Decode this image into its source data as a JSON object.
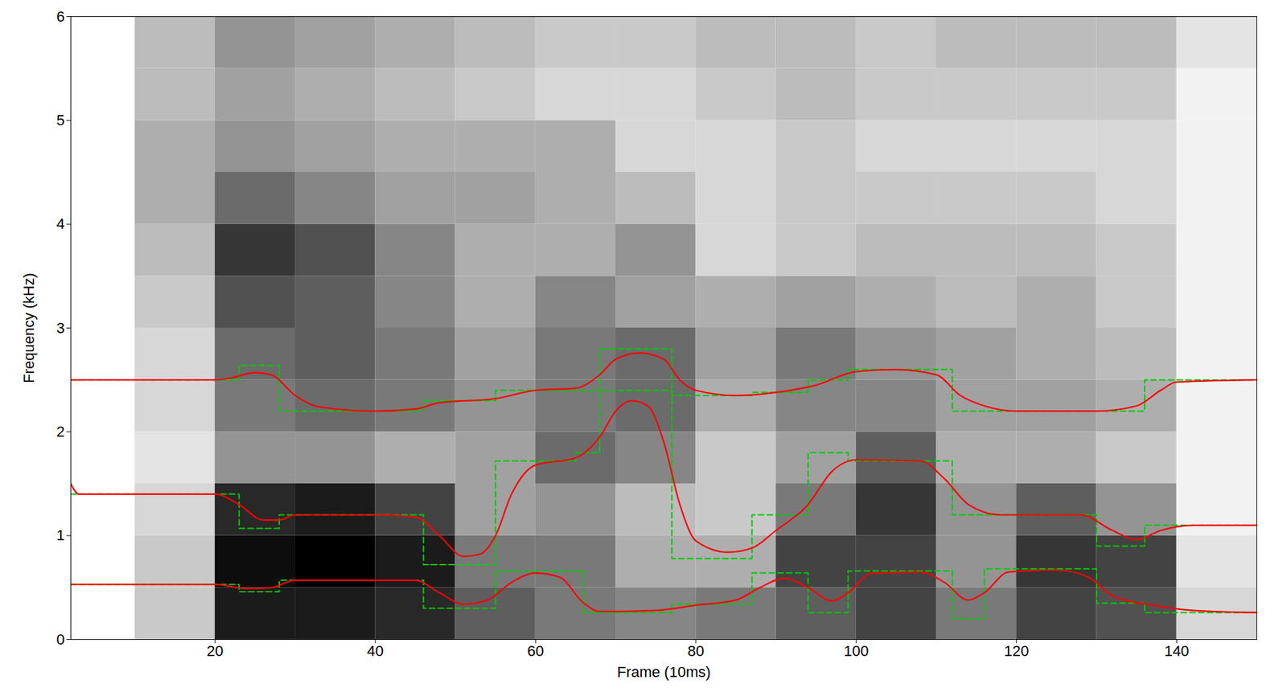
{
  "chart_data": {
    "type": "line",
    "x_label": "Frame (10ms)",
    "y_label": "Frequency (kHz)",
    "xlim": [
      2,
      150
    ],
    "xticks": [
      20,
      40,
      60,
      80,
      100,
      120,
      140
    ],
    "ylim": [
      0,
      6
    ],
    "yticks": [
      0,
      1,
      2,
      3,
      4,
      5,
      6
    ],
    "grid": false,
    "spectrogram": {
      "x_edges": [
        2,
        10,
        20,
        30,
        40,
        50,
        60,
        70,
        80,
        90,
        100,
        110,
        120,
        130,
        140,
        150
      ],
      "y_edges": [
        0,
        0.5,
        1,
        1.5,
        2,
        2.5,
        3,
        3.5,
        4,
        4.5,
        5,
        5.5,
        6
      ],
      "cells": [
        [
          0,
          0.2,
          0.85,
          0.85,
          0.8,
          0.6,
          0.5,
          0.45,
          0.5,
          0.6,
          0.7,
          0.5,
          0.7,
          0.65,
          0.15
        ],
        [
          0,
          0.2,
          0.9,
          0.95,
          0.85,
          0.5,
          0.5,
          0.3,
          0.3,
          0.7,
          0.7,
          0.4,
          0.75,
          0.7,
          0.1
        ],
        [
          0,
          0.15,
          0.8,
          0.85,
          0.7,
          0.35,
          0.4,
          0.25,
          0.2,
          0.5,
          0.75,
          0.4,
          0.6,
          0.4,
          0.05
        ],
        [
          0,
          0.1,
          0.4,
          0.4,
          0.3,
          0.35,
          0.55,
          0.45,
          0.2,
          0.35,
          0.6,
          0.3,
          0.3,
          0.2,
          0.05
        ],
        [
          0,
          0.15,
          0.5,
          0.55,
          0.5,
          0.4,
          0.5,
          0.55,
          0.3,
          0.45,
          0.45,
          0.35,
          0.35,
          0.3,
          0.05
        ],
        [
          0,
          0.15,
          0.55,
          0.6,
          0.5,
          0.35,
          0.5,
          0.55,
          0.35,
          0.5,
          0.4,
          0.35,
          0.3,
          0.25,
          0.05
        ],
        [
          0,
          0.2,
          0.65,
          0.6,
          0.45,
          0.3,
          0.45,
          0.35,
          0.3,
          0.35,
          0.3,
          0.25,
          0.3,
          0.2,
          0.05
        ],
        [
          0,
          0.25,
          0.75,
          0.65,
          0.45,
          0.3,
          0.3,
          0.4,
          0.15,
          0.2,
          0.25,
          0.25,
          0.25,
          0.2,
          0.05
        ],
        [
          0,
          0.3,
          0.55,
          0.45,
          0.35,
          0.35,
          0.3,
          0.25,
          0.15,
          0.2,
          0.2,
          0.2,
          0.2,
          0.15,
          0.05
        ],
        [
          0,
          0.3,
          0.4,
          0.35,
          0.3,
          0.3,
          0.3,
          0.15,
          0.15,
          0.2,
          0.15,
          0.15,
          0.15,
          0.15,
          0.05
        ],
        [
          0,
          0.25,
          0.35,
          0.3,
          0.25,
          0.2,
          0.15,
          0.15,
          0.2,
          0.25,
          0.2,
          0.2,
          0.2,
          0.2,
          0.05
        ],
        [
          0,
          0.25,
          0.4,
          0.35,
          0.3,
          0.25,
          0.2,
          0.2,
          0.25,
          0.25,
          0.2,
          0.25,
          0.25,
          0.25,
          0.1
        ]
      ]
    },
    "series": [
      {
        "type": "step",
        "color": "#00cc00",
        "line_style": "dashed",
        "x": [
          2,
          23,
          28,
          46,
          55,
          66,
          77,
          87,
          94,
          99,
          112,
          116,
          130,
          136,
          150
        ],
        "values": [
          0.53,
          0.46,
          0.57,
          0.3,
          0.66,
          0.26,
          0.34,
          0.64,
          0.26,
          0.66,
          0.2,
          0.68,
          0.35,
          0.26,
          0.26
        ]
      },
      {
        "type": "step",
        "color": "#00cc00",
        "line_style": "dashed",
        "x": [
          2,
          23,
          28,
          46,
          55,
          65,
          68,
          77,
          87,
          94,
          99,
          112,
          130,
          136,
          150
        ],
        "values": [
          1.4,
          1.07,
          1.2,
          0.72,
          1.72,
          1.8,
          2.4,
          0.78,
          1.2,
          1.8,
          1.72,
          1.2,
          0.9,
          1.1,
          1.1
        ]
      },
      {
        "type": "step",
        "color": "#00cc00",
        "line_style": "dashed",
        "x": [
          2,
          23,
          28,
          46,
          55,
          68,
          77,
          87,
          94,
          99,
          112,
          136,
          150
        ],
        "values": [
          2.5,
          2.64,
          2.2,
          2.3,
          2.4,
          2.8,
          2.35,
          2.38,
          2.5,
          2.6,
          2.2,
          2.5,
          2.5
        ]
      },
      {
        "type": "line",
        "color": "#ff0000",
        "line_style": "solid",
        "x": [
          2,
          20,
          24,
          27,
          30,
          45,
          48,
          51,
          54,
          57,
          60,
          63,
          66,
          68,
          75,
          80,
          85,
          88,
          91,
          94,
          97,
          99,
          102,
          108,
          111,
          114,
          116,
          119,
          125,
          129,
          132,
          137,
          142,
          150
        ],
        "values": [
          0.53,
          0.53,
          0.49,
          0.5,
          0.57,
          0.57,
          0.45,
          0.34,
          0.38,
          0.55,
          0.64,
          0.6,
          0.35,
          0.27,
          0.28,
          0.33,
          0.38,
          0.5,
          0.59,
          0.5,
          0.37,
          0.45,
          0.64,
          0.65,
          0.55,
          0.38,
          0.45,
          0.65,
          0.67,
          0.6,
          0.42,
          0.33,
          0.28,
          0.26
        ]
      },
      {
        "type": "line",
        "color": "#ff0000",
        "line_style": "solid",
        "x": [
          2,
          3,
          20,
          23,
          26,
          28,
          30,
          40,
          45,
          48,
          51,
          53,
          55,
          57,
          60,
          65,
          68,
          70,
          72,
          74,
          76,
          78,
          80,
          84,
          87,
          90,
          94,
          97,
          100,
          108,
          111,
          114,
          118,
          128,
          132,
          135,
          138,
          142,
          150
        ],
        "values": [
          1.5,
          1.4,
          1.4,
          1.3,
          1.15,
          1.15,
          1.2,
          1.2,
          1.18,
          1.0,
          0.8,
          0.82,
          1.0,
          1.4,
          1.68,
          1.75,
          1.95,
          2.2,
          2.3,
          2.25,
          1.9,
          1.3,
          0.95,
          0.84,
          0.88,
          1.05,
          1.3,
          1.62,
          1.73,
          1.72,
          1.55,
          1.3,
          1.2,
          1.2,
          1.05,
          0.96,
          1.05,
          1.1,
          1.1
        ]
      },
      {
        "type": "line",
        "color": "#ff0000",
        "line_style": "solid",
        "x": [
          2,
          20,
          22,
          25,
          27,
          30,
          33,
          40,
          45,
          48,
          55,
          60,
          65,
          68,
          70,
          73,
          76,
          78,
          80,
          85,
          90,
          95,
          100,
          105,
          110,
          113,
          116,
          120,
          130,
          135,
          138,
          140,
          150
        ],
        "values": [
          2.5,
          2.5,
          2.52,
          2.57,
          2.55,
          2.35,
          2.24,
          2.2,
          2.22,
          2.28,
          2.32,
          2.4,
          2.42,
          2.55,
          2.7,
          2.76,
          2.7,
          2.5,
          2.4,
          2.35,
          2.38,
          2.45,
          2.58,
          2.6,
          2.55,
          2.35,
          2.25,
          2.2,
          2.2,
          2.25,
          2.4,
          2.48,
          2.5
        ]
      }
    ]
  }
}
